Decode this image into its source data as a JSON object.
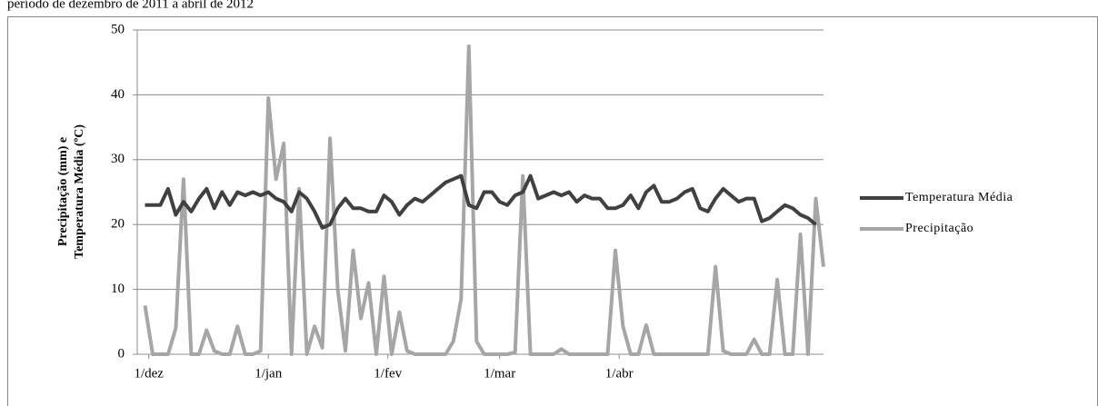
{
  "chart_data": {
    "type": "line",
    "title": "período de dezembro de 2011 a abril de 2012",
    "y_label": [
      "Precipitação (mm) e",
      "Temperatura Média (ºC)"
    ],
    "x": [
      -1,
      1,
      3,
      5,
      7,
      9,
      11,
      13,
      15,
      17,
      19,
      21,
      23,
      25,
      27,
      29,
      31,
      33,
      35,
      37,
      39,
      41,
      43,
      45,
      47,
      49,
      51,
      53,
      55,
      57,
      59,
      61,
      63,
      65,
      67,
      69,
      71,
      73,
      75,
      77,
      79,
      81,
      83,
      85,
      87,
      89,
      91,
      93,
      95,
      97,
      99,
      101,
      103,
      105,
      107,
      109,
      111,
      113,
      115,
      117,
      119,
      121,
      123,
      125,
      127,
      129,
      131,
      133,
      135,
      137,
      139,
      141,
      143,
      145,
      147,
      149,
      151,
      153,
      155,
      157,
      159,
      161,
      163,
      165,
      167,
      169,
      171,
      173,
      175
    ],
    "series": [
      {
        "name": "Temperatura Média",
        "color": "#404040",
        "values": [
          23,
          23,
          23,
          25.5,
          21.5,
          23.5,
          22,
          24,
          25.5,
          22.5,
          25,
          23,
          25,
          24.5,
          25,
          24.5,
          25,
          24,
          23.5,
          22,
          25,
          24,
          22,
          19.5,
          20,
          22.5,
          24,
          22.5,
          22.5,
          22,
          22,
          24.5,
          23.5,
          21.5,
          23,
          24,
          23.5,
          24.5,
          25.5,
          26.5,
          27,
          27.5,
          23,
          22.5,
          25,
          25,
          23.5,
          23,
          24.5,
          25,
          27.5,
          24,
          24.5,
          25,
          24.5,
          25,
          23.5,
          24.5,
          24,
          24,
          22.5,
          22.5,
          23,
          24.5,
          22.5,
          25,
          26,
          23.5,
          23.5,
          24,
          25,
          25.5,
          22.5,
          22,
          24,
          25.5,
          24.5,
          23.5,
          24,
          24,
          20.5,
          21,
          22,
          23,
          22.5,
          21.5,
          21,
          20,
          null
        ]
      },
      {
        "name": "Precipitação",
        "color": "#a6a6a6",
        "values": [
          7.5,
          0,
          0,
          0,
          4,
          27,
          0,
          0,
          3.7,
          0.5,
          0,
          0,
          4.3,
          0,
          0,
          0.5,
          39.5,
          27,
          32.5,
          0,
          25.5,
          0,
          4.3,
          1,
          33.3,
          10,
          0.5,
          16,
          5.5,
          11,
          0,
          12,
          0,
          6.5,
          0.5,
          0,
          0,
          0,
          0,
          0,
          2,
          8.5,
          47.5,
          2,
          0,
          0,
          0,
          0,
          0.3,
          27.5,
          0,
          0,
          0,
          0,
          0.8,
          0,
          0,
          0,
          0,
          0,
          0,
          16,
          4.3,
          0,
          0,
          4.5,
          0,
          0,
          0,
          0,
          0,
          0,
          0,
          0,
          13.5,
          0.5,
          0,
          0,
          0,
          2.3,
          0,
          0,
          11.5,
          0,
          0,
          18.5,
          0,
          24,
          13.5
        ]
      }
    ],
    "xlim": [
      -3,
      175
    ],
    "xticks": [
      {
        "value": 0,
        "label": "1/dez"
      },
      {
        "value": 31,
        "label": "1/jan"
      },
      {
        "value": 62,
        "label": "1/fev"
      },
      {
        "value": 91,
        "label": "1/mar"
      },
      {
        "value": 122,
        "label": "1/abr"
      }
    ],
    "ylim": [
      0,
      50
    ],
    "yticks": [
      0,
      10,
      20,
      30,
      40,
      50
    ],
    "grid": true
  }
}
